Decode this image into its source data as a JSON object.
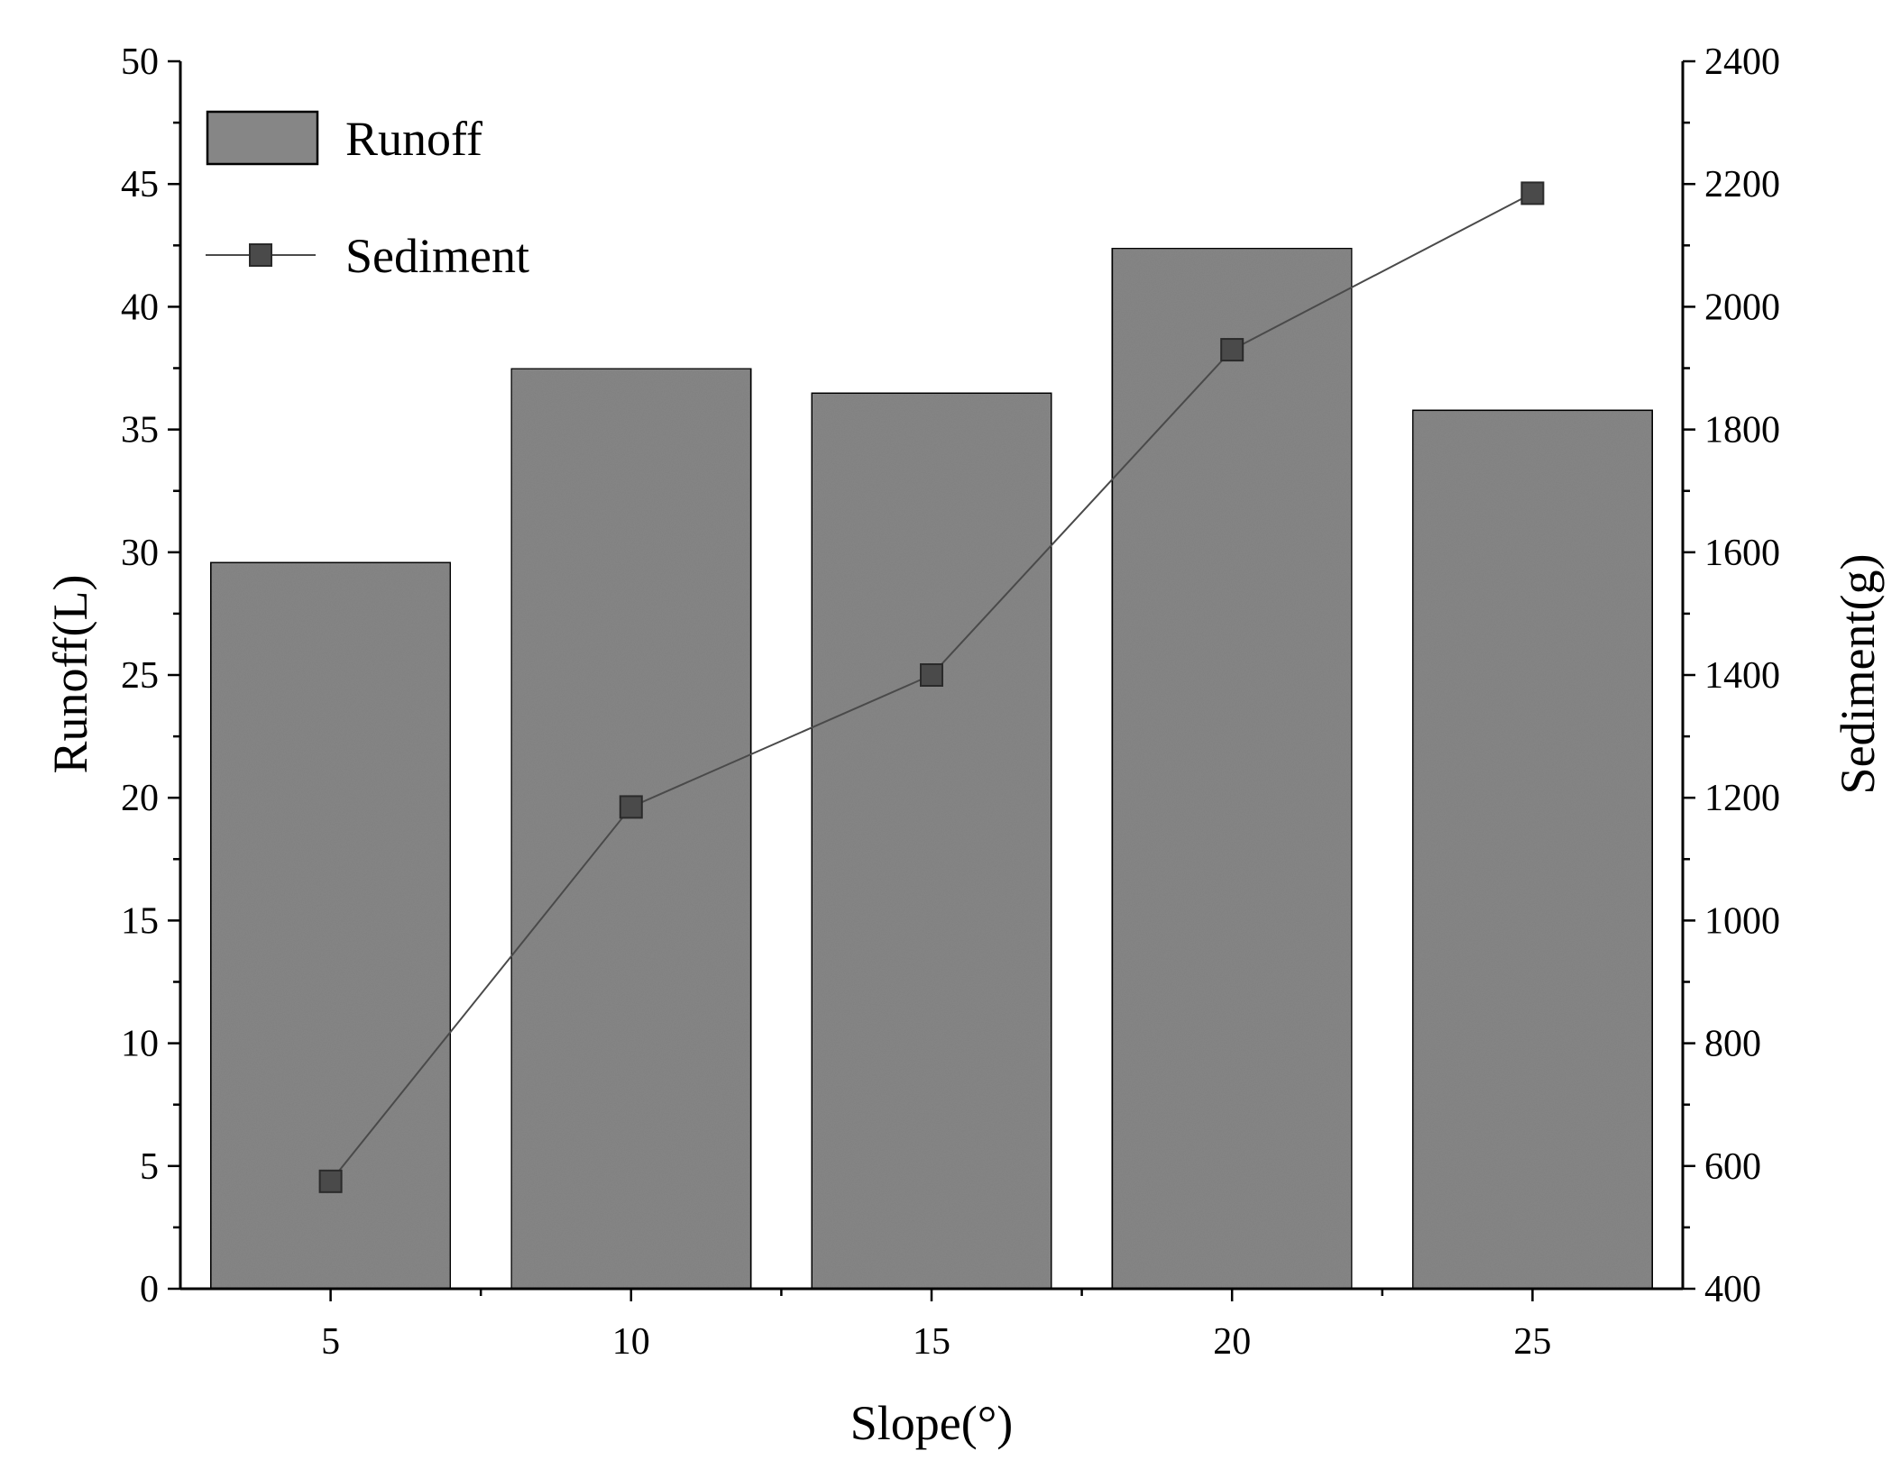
{
  "chart_data": {
    "type": "bar",
    "categories": [
      "5",
      "10",
      "15",
      "20",
      "25"
    ],
    "x": [
      5,
      10,
      15,
      20,
      25
    ],
    "series": [
      {
        "name": "Runoff",
        "type": "bar",
        "axis": "left",
        "values": [
          29.6,
          37.5,
          36.5,
          42.4,
          35.8
        ],
        "color": "#868686"
      },
      {
        "name": "Sediment",
        "type": "line",
        "axis": "right",
        "values": [
          575,
          1185,
          1400,
          1930,
          2185
        ],
        "color": "#4a4a4a",
        "marker": "square"
      }
    ],
    "xlabel": "Slope(°)",
    "ylabel": "Runoff(L)",
    "y2label": "Sediment(g)",
    "xlim": [
      2.5,
      27.5
    ],
    "ylim": [
      0,
      50
    ],
    "y2lim": [
      400,
      2400
    ],
    "xticks": [
      5,
      10,
      15,
      20,
      25
    ],
    "yticks": [
      0,
      5,
      10,
      15,
      20,
      25,
      30,
      35,
      40,
      45,
      50
    ],
    "y2ticks": [
      400,
      600,
      800,
      1000,
      1200,
      1400,
      1600,
      1800,
      2000,
      2200,
      2400
    ],
    "grid": false,
    "legend": "top-left"
  }
}
